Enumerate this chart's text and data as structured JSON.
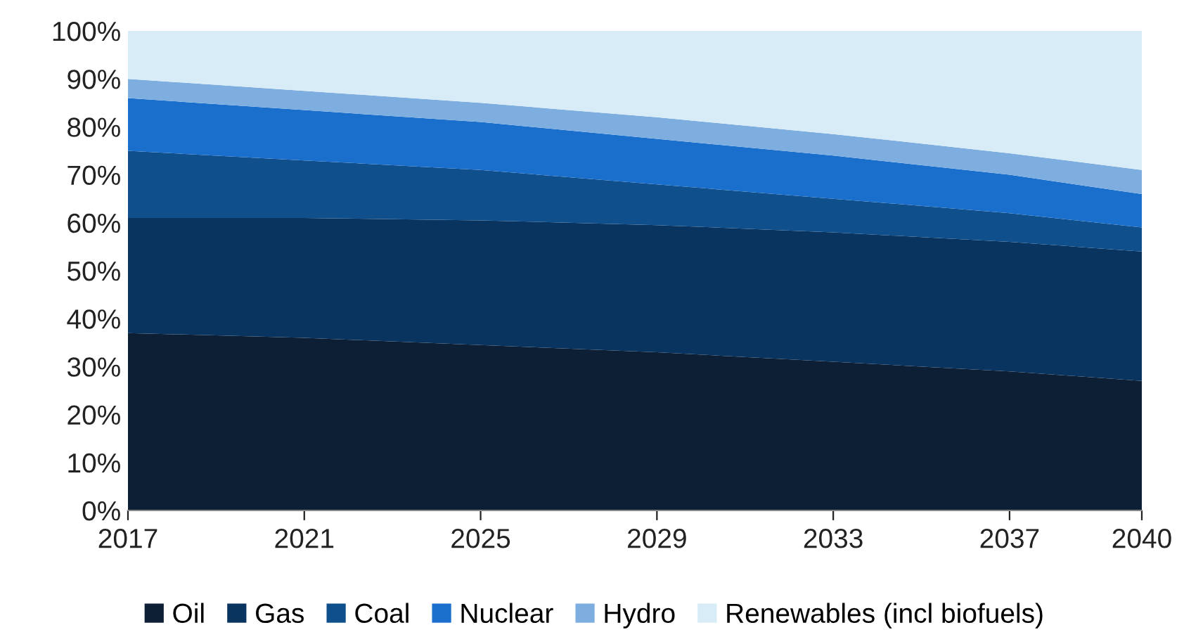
{
  "chart_data": {
    "type": "area",
    "stacked": true,
    "x": [
      2017,
      2021,
      2025,
      2029,
      2033,
      2037,
      2040
    ],
    "series": [
      {
        "name": "Oil",
        "color": "#0d1f35",
        "values": [
          37,
          36,
          34.5,
          33,
          31,
          29,
          27
        ]
      },
      {
        "name": "Gas",
        "color": "#0a3460",
        "values": [
          24,
          25,
          26,
          26.5,
          27,
          27,
          27
        ]
      },
      {
        "name": "Coal",
        "color": "#0f4f8c",
        "values": [
          14,
          12,
          10.5,
          8.5,
          7,
          6,
          5
        ]
      },
      {
        "name": "Nuclear",
        "color": "#1a6fcc",
        "values": [
          11,
          10.5,
          10,
          9.5,
          9,
          8,
          7
        ]
      },
      {
        "name": "Hydro",
        "color": "#7eaee0",
        "values": [
          4,
          4,
          4,
          4.5,
          4.5,
          4.5,
          5
        ]
      },
      {
        "name": "Renewables (incl biofuels)",
        "color": "#d7ecf6",
        "values": [
          10,
          12.5,
          15,
          18,
          21.5,
          25.5,
          29
        ]
      }
    ],
    "xlim": [
      2017,
      2040
    ],
    "xticks": [
      2017,
      2021,
      2025,
      2029,
      2033,
      2037,
      2040
    ],
    "ylim": [
      0,
      100
    ],
    "yticks": [
      {
        "value": 0,
        "label": "0%"
      },
      {
        "value": 10,
        "label": "10%"
      },
      {
        "value": 20,
        "label": "20%"
      },
      {
        "value": 30,
        "label": "30%"
      },
      {
        "value": 40,
        "label": "40%"
      },
      {
        "value": 50,
        "label": "50%"
      },
      {
        "value": 60,
        "label": "60%"
      },
      {
        "value": 70,
        "label": "70%"
      },
      {
        "value": 80,
        "label": "80%"
      },
      {
        "value": 90,
        "label": "90%"
      },
      {
        "value": 100,
        "label": "100%"
      }
    ],
    "legend": "bottom",
    "grid": false
  }
}
